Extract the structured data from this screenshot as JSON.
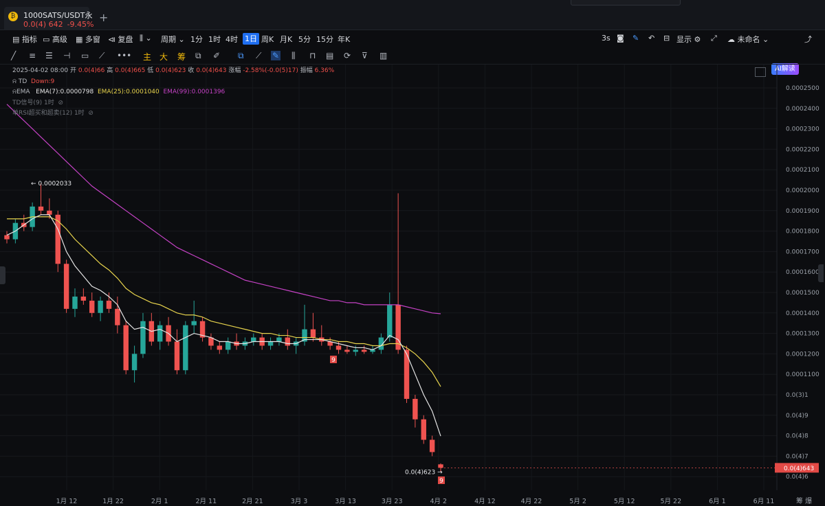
{
  "tab": {
    "title": "1000SATS/USDT永",
    "price": "0.0(4) 642",
    "change": "-9.45%",
    "logo_glyph": "₿"
  },
  "toolbar": {
    "indicators": "指标",
    "advanced": "高级",
    "multi_window": "多窗",
    "replay": "复盘",
    "period": "周期",
    "intervals": [
      "1分",
      "1时",
      "4时",
      "1日",
      "周K",
      "月K",
      "5分",
      "15分",
      "年K"
    ],
    "active_interval": "1日",
    "refresh": "3s",
    "display": "显示",
    "layout_name": "未命名",
    "ai": "AI解读"
  },
  "drawbar": {
    "main": "主",
    "big": "大",
    "chips": "筹"
  },
  "legend": {
    "date": "2025-04-02 08:00",
    "open_label": "开",
    "open": "0.0(4)66",
    "high_label": "高",
    "high": "0.0(4)665",
    "low_label": "低",
    "low": "0.0(4)623",
    "close_label": "收",
    "close": "0.0(4)643",
    "chg_label": "涨幅",
    "chg": "-2.58%(-0.0(5)17)",
    "amp_label": "振幅",
    "amp": "6.36%",
    "td_label": "TD",
    "td_value": "Down:9",
    "ema_label": "EMA",
    "ema7": "EMA(7):0.0000798",
    "ema25": "EMA(25):0.0001040",
    "ema99": "EMA(99):0.0001396",
    "td_signal": "TD信号(9) 1时",
    "rsi": "单RSI超买和超卖(12) 1时"
  },
  "colors": {
    "up": "#26a69a",
    "down": "#ef5350",
    "ema7": "#e6e6e6",
    "ema25": "#e8d44d",
    "ema99": "#c542c5",
    "bg": "#0c0d10",
    "accent": "#1f6ff2"
  },
  "chart_data": {
    "type": "candlestick",
    "y_labels": [
      "0.0002500",
      "0.0002400",
      "0.0002300",
      "0.0002200",
      "0.0002100",
      "0.0002000",
      "0.0001900",
      "0.0001800",
      "0.0001700",
      "0.0001600",
      "0.0001500",
      "0.0001400",
      "0.0001300",
      "0.0001200",
      "0.0001100",
      "0.0(3)1",
      "0.0(4)9",
      "0.0(4)8",
      "0.0(4)7",
      "0.0(4)6"
    ],
    "y_values": [
      0.00025,
      0.00024,
      0.00023,
      0.00022,
      0.00021,
      0.0002,
      0.00019,
      0.00018,
      0.00017,
      0.00016,
      0.00015,
      0.00014,
      0.00013,
      0.00012,
      0.00011,
      0.0001,
      9e-05,
      8e-05,
      7e-05,
      6e-05
    ],
    "x_labels": [
      "1月 12",
      "1月 22",
      "2月 1",
      "2月 11",
      "2月 21",
      "3月 3",
      "3月 13",
      "3月 23",
      "4月 2",
      "4月 12",
      "4月 22",
      "5月 2",
      "5月 12",
      "5月 22",
      "6月 1",
      "6月 11"
    ],
    "current_price_label": "0.0(4)643",
    "high_annotation": "0.0002033",
    "low_annotation": "0.0(4)623",
    "td_marks": [
      "9",
      "9"
    ],
    "right_axis_extra": "筹 爆",
    "candles": [
      [
        0.000178,
        0.00018,
        0.000174,
        0.000176
      ],
      [
        0.000176,
        0.000186,
        0.000174,
        0.000184
      ],
      [
        0.000184,
        0.000188,
        0.00018,
        0.000182
      ],
      [
        0.000182,
        0.000194,
        0.00018,
        0.000192
      ],
      [
        0.000192,
        0.0002033,
        0.000188,
        0.00019
      ],
      [
        0.00019,
        0.000196,
        0.000186,
        0.000188
      ],
      [
        0.000188,
        0.00019,
        0.00016,
        0.000164
      ],
      [
        0.000164,
        0.000166,
        0.00014,
        0.000142
      ],
      [
        0.000142,
        0.000152,
        0.000138,
        0.000148
      ],
      [
        0.000148,
        0.000152,
        0.000144,
        0.000146
      ],
      [
        0.000146,
        0.00015,
        0.000138,
        0.00014
      ],
      [
        0.00014,
        0.000148,
        0.000136,
        0.000146
      ],
      [
        0.000146,
        0.00015,
        0.00014,
        0.000142
      ],
      [
        0.000142,
        0.000148,
        0.00013,
        0.000134
      ],
      [
        0.000134,
        0.000136,
        0.00011,
        0.000112
      ],
      [
        0.000112,
        0.000124,
        0.000106,
        0.00012
      ],
      [
        0.00012,
        0.00014,
        0.000118,
        0.000136
      ],
      [
        0.000136,
        0.00014,
        0.000124,
        0.000126
      ],
      [
        0.000126,
        0.000136,
        0.000122,
        0.000134
      ],
      [
        0.000134,
        0.000138,
        0.000124,
        0.000126
      ],
      [
        0.000126,
        0.000132,
        0.00011,
        0.000112
      ],
      [
        0.000112,
        0.000136,
        0.00011,
        0.000134
      ],
      [
        0.000134,
        0.000146,
        0.00013,
        0.000136
      ],
      [
        0.000136,
        0.000138,
        0.000126,
        0.000128
      ],
      [
        0.000128,
        0.00013,
        0.000122,
        0.000124
      ],
      [
        0.000124,
        0.000126,
        0.00012,
        0.000122
      ],
      [
        0.000122,
        0.000128,
        0.00012,
        0.000126
      ],
      [
        0.000126,
        0.00013,
        0.000122,
        0.000124
      ],
      [
        0.000124,
        0.000128,
        0.000122,
        0.000126
      ],
      [
        0.000126,
        0.00013,
        0.000124,
        0.000128
      ],
      [
        0.000128,
        0.00013,
        0.000122,
        0.000124
      ],
      [
        0.000124,
        0.000128,
        0.000122,
        0.000126
      ],
      [
        0.000126,
        0.00013,
        0.000124,
        0.000128
      ],
      [
        0.000128,
        0.000132,
        0.000122,
        0.000124
      ],
      [
        0.000124,
        0.000128,
        0.00012,
        0.000126
      ],
      [
        0.000126,
        0.000144,
        0.000124,
        0.000132
      ],
      [
        0.000132,
        0.00014,
        0.000126,
        0.000128
      ],
      [
        0.000128,
        0.000134,
        0.000124,
        0.000126
      ],
      [
        0.000126,
        0.000128,
        0.000122,
        0.000124
      ],
      [
        0.000124,
        0.000126,
        0.00012,
        0.000122
      ],
      [
        0.000122,
        0.000124,
        0.00012,
        0.000121
      ],
      [
        0.000121,
        0.000124,
        0.000119,
        0.000122
      ],
      [
        0.000122,
        0.000124,
        0.00012,
        0.000121
      ],
      [
        0.000121,
        0.000124,
        0.00012,
        0.000122
      ],
      [
        0.000122,
        0.00013,
        0.00012,
        0.000128
      ],
      [
        0.000128,
        0.00015,
        0.000126,
        0.000144
      ],
      [
        0.000144,
        0.0001985,
        0.00012,
        0.000122
      ],
      [
        0.000122,
        0.000124,
        9.6e-05,
        9.8e-05
      ],
      [
        9.8e-05,
        0.0001,
        8.4e-05,
        8.8e-05
      ],
      [
        8.8e-05,
        9e-05,
        7.6e-05,
        7.8e-05
      ],
      [
        7.8e-05,
        8e-05,
        7e-05,
        7.2e-05
      ],
      [
        6.6e-05,
        6.65e-05,
        6.23e-05,
        6.43e-05
      ]
    ],
    "ema7": [
      0.000178,
      0.00018,
      0.000183,
      0.000186,
      0.000188,
      0.000188,
      0.000181,
      0.00017,
      0.000163,
      0.000158,
      0.000153,
      0.000151,
      0.000148,
      0.000144,
      0.000136,
      0.000132,
      0.000133,
      0.000131,
      0.000132,
      0.00013,
      0.000126,
      0.000128,
      0.00013,
      0.000129,
      0.000128,
      0.000126,
      0.000126,
      0.000125,
      0.000125,
      0.000126,
      0.000126,
      0.000126,
      0.000126,
      0.000125,
      0.000125,
      0.000127,
      0.000127,
      0.000127,
      0.000126,
      0.000125,
      0.000124,
      0.000123,
      0.000123,
      0.000122,
      0.000124,
      0.000129,
      0.000127,
      0.00012,
      0.00011,
      0.0001,
      9.2e-05,
      7.98e-05
    ],
    "ema25": [
      0.000186,
      0.000186,
      0.000186,
      0.000187,
      0.000187,
      0.000187,
      0.000185,
      0.000181,
      0.000176,
      0.000172,
      0.000168,
      0.000164,
      0.000161,
      0.000157,
      0.000152,
      0.000149,
      0.000147,
      0.000145,
      0.000144,
      0.000142,
      0.00014,
      0.000139,
      0.000139,
      0.000138,
      0.000136,
      0.000135,
      0.000134,
      0.000133,
      0.000132,
      0.000131,
      0.00013,
      0.00013,
      0.000129,
      0.000129,
      0.000128,
      0.000128,
      0.000128,
      0.000127,
      0.000127,
      0.000126,
      0.000126,
      0.000125,
      0.000125,
      0.000124,
      0.000124,
      0.000125,
      0.000125,
      0.000123,
      0.00012,
      0.000116,
      0.000111,
      0.000104
    ],
    "ema99": [
      0.000242,
      0.000238,
      0.000234,
      0.00023,
      0.000226,
      0.000222,
      0.000218,
      0.000214,
      0.00021,
      0.000206,
      0.000202,
      0.000199,
      0.000196,
      0.000193,
      0.00019,
      0.000187,
      0.000184,
      0.000181,
      0.000178,
      0.000175,
      0.000172,
      0.00017,
      0.000168,
      0.000166,
      0.000164,
      0.000162,
      0.00016,
      0.000158,
      0.000156,
      0.000155,
      0.000154,
      0.000153,
      0.000152,
      0.000151,
      0.00015,
      0.000149,
      0.000148,
      0.000147,
      0.000146,
      0.000146,
      0.000145,
      0.000145,
      0.000144,
      0.000144,
      0.000144,
      0.000144,
      0.000144,
      0.000143,
      0.000142,
      0.000141,
      0.00014,
      0.0001396
    ]
  }
}
